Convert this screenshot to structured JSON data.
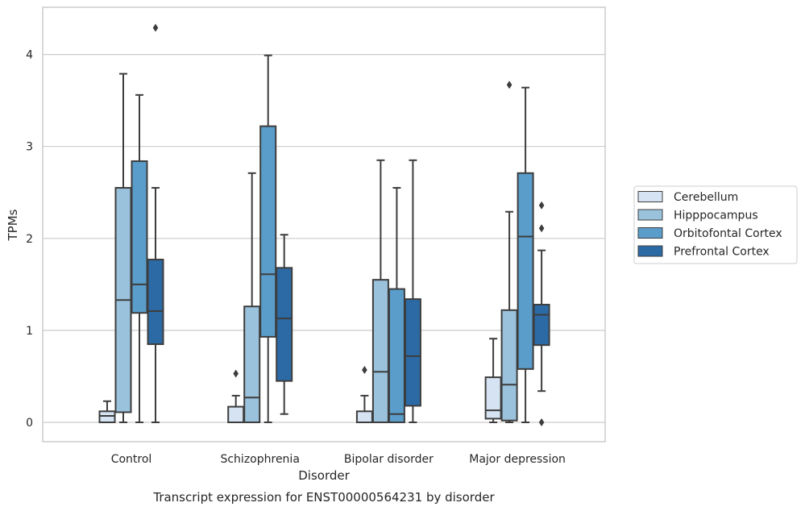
{
  "chart_data": {
    "type": "box",
    "title": "Transcript expression for ENST00000564231 by disorder",
    "xlabel": "Disorder",
    "ylabel": "TPMs",
    "ylim": [
      -0.2,
      4.5
    ],
    "yticks": [
      0,
      1,
      2,
      3,
      4
    ],
    "grid": "horizontal",
    "legend_position": "right",
    "categories": [
      "Control",
      "Schizophrenia",
      "Bipolar disorder",
      "Major depression"
    ],
    "series": [
      {
        "name": "Cerebellum",
        "color": "#d5e3f2",
        "boxes": [
          {
            "whislo": 0.0,
            "q1": 0.0,
            "med": 0.07,
            "q3": 0.12,
            "whishi": 0.23,
            "fliers": []
          },
          {
            "whislo": 0.0,
            "q1": 0.0,
            "med": 0.0,
            "q3": 0.17,
            "whishi": 0.29,
            "fliers": [
              0.53
            ]
          },
          {
            "whislo": 0.0,
            "q1": 0.0,
            "med": 0.0,
            "q3": 0.12,
            "whishi": 0.29,
            "fliers": [
              0.57
            ]
          },
          {
            "whislo": 0.0,
            "q1": 0.04,
            "med": 0.13,
            "q3": 0.49,
            "whishi": 0.91,
            "fliers": []
          }
        ]
      },
      {
        "name": "Hipppocampus",
        "color": "#9ac2dc",
        "boxes": [
          {
            "whislo": 0.0,
            "q1": 0.11,
            "med": 1.33,
            "q3": 2.55,
            "whishi": 3.79,
            "fliers": []
          },
          {
            "whislo": 0.0,
            "q1": 0.0,
            "med": 0.27,
            "q3": 1.26,
            "whishi": 2.71,
            "fliers": []
          },
          {
            "whislo": 0.0,
            "q1": 0.0,
            "med": 0.55,
            "q3": 1.55,
            "whishi": 2.85,
            "fliers": []
          },
          {
            "whislo": 0.0,
            "q1": 0.02,
            "med": 0.41,
            "q3": 1.22,
            "whishi": 2.29,
            "fliers": [
              3.67
            ]
          }
        ]
      },
      {
        "name": "Orbitofontal Cortex",
        "color": "#5a9dca",
        "boxes": [
          {
            "whislo": 0.0,
            "q1": 1.19,
            "med": 1.5,
            "q3": 2.84,
            "whishi": 3.56,
            "fliers": []
          },
          {
            "whislo": 0.0,
            "q1": 0.93,
            "med": 1.61,
            "q3": 3.22,
            "whishi": 3.99,
            "fliers": []
          },
          {
            "whislo": 0.0,
            "q1": 0.0,
            "med": 0.09,
            "q3": 1.45,
            "whishi": 2.55,
            "fliers": []
          },
          {
            "whislo": 0.0,
            "q1": 0.58,
            "med": 2.02,
            "q3": 2.71,
            "whishi": 3.64,
            "fliers": []
          }
        ]
      },
      {
        "name": "Prefrontal Cortex",
        "color": "#2c6aa6",
        "boxes": [
          {
            "whislo": 0.0,
            "q1": 0.85,
            "med": 1.21,
            "q3": 1.77,
            "whishi": 2.55,
            "fliers": [
              4.29
            ]
          },
          {
            "whislo": 0.09,
            "q1": 0.45,
            "med": 1.13,
            "q3": 1.68,
            "whishi": 2.04,
            "fliers": []
          },
          {
            "whislo": 0.0,
            "q1": 0.18,
            "med": 0.72,
            "q3": 1.34,
            "whishi": 2.85,
            "fliers": []
          },
          {
            "whislo": 0.34,
            "q1": 0.84,
            "med": 1.17,
            "q3": 1.28,
            "whishi": 1.87,
            "fliers": [
              0.0,
              2.11,
              2.36
            ]
          }
        ]
      }
    ]
  },
  "colors": {
    "frame": "#cccccc",
    "grid": "#cccccc",
    "line": "#3d3d3d",
    "text": "#262626"
  }
}
